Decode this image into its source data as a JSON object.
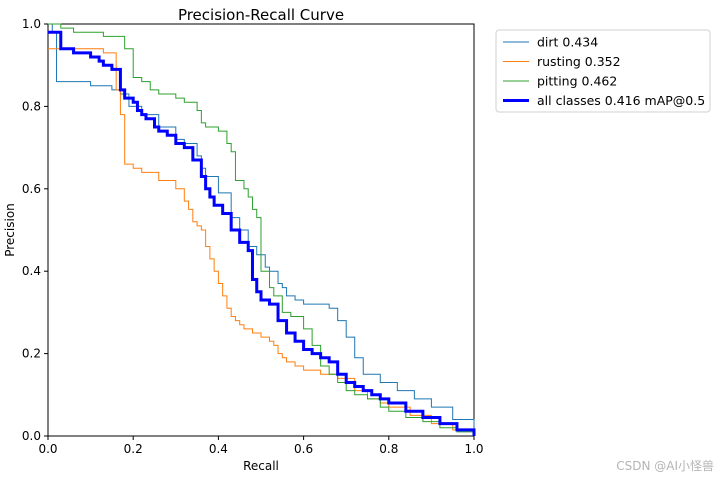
{
  "chart_data": {
    "type": "line",
    "title": "Precision-Recall Curve",
    "xlabel": "Recall",
    "ylabel": "Precision",
    "xlim": [
      0,
      1
    ],
    "ylim": [
      0,
      1
    ],
    "xticks": [
      "0.0",
      "0.2",
      "0.4",
      "0.6",
      "0.8",
      "1.0"
    ],
    "yticks": [
      "0.0",
      "0.2",
      "0.4",
      "0.6",
      "0.8",
      "1.0"
    ],
    "grid": false,
    "legend_position": "outside-top-right",
    "series": [
      {
        "name": "dirt 0.434",
        "color": "#1f77b4",
        "points": [
          [
            0,
            1.0
          ],
          [
            0.01,
            0.98
          ],
          [
            0.02,
            0.86
          ],
          [
            0.04,
            0.86
          ],
          [
            0.1,
            0.85
          ],
          [
            0.15,
            0.84
          ],
          [
            0.17,
            0.83
          ],
          [
            0.19,
            0.8
          ],
          [
            0.22,
            0.78
          ],
          [
            0.26,
            0.75
          ],
          [
            0.3,
            0.72
          ],
          [
            0.32,
            0.71
          ],
          [
            0.35,
            0.68
          ],
          [
            0.36,
            0.65
          ],
          [
            0.37,
            0.63
          ],
          [
            0.4,
            0.59
          ],
          [
            0.43,
            0.53
          ],
          [
            0.45,
            0.5
          ],
          [
            0.47,
            0.46
          ],
          [
            0.49,
            0.44
          ],
          [
            0.51,
            0.41
          ],
          [
            0.52,
            0.4
          ],
          [
            0.54,
            0.37
          ],
          [
            0.55,
            0.36
          ],
          [
            0.56,
            0.34
          ],
          [
            0.58,
            0.33
          ],
          [
            0.6,
            0.32
          ],
          [
            0.62,
            0.32
          ],
          [
            0.66,
            0.31
          ],
          [
            0.68,
            0.28
          ],
          [
            0.7,
            0.24
          ],
          [
            0.72,
            0.19
          ],
          [
            0.74,
            0.15
          ],
          [
            0.78,
            0.13
          ],
          [
            0.82,
            0.11
          ],
          [
            0.86,
            0.09
          ],
          [
            0.9,
            0.07
          ],
          [
            0.95,
            0.04
          ],
          [
            1.0,
            0.0
          ]
        ]
      },
      {
        "name": "rusting 0.352",
        "color": "#ff7f0e",
        "points": [
          [
            0,
            0.94
          ],
          [
            0.06,
            0.94
          ],
          [
            0.13,
            0.93
          ],
          [
            0.16,
            0.84
          ],
          [
            0.17,
            0.78
          ],
          [
            0.18,
            0.66
          ],
          [
            0.2,
            0.65
          ],
          [
            0.22,
            0.64
          ],
          [
            0.26,
            0.62
          ],
          [
            0.3,
            0.6
          ],
          [
            0.32,
            0.57
          ],
          [
            0.33,
            0.55
          ],
          [
            0.34,
            0.52
          ],
          [
            0.35,
            0.51
          ],
          [
            0.36,
            0.5
          ],
          [
            0.37,
            0.46
          ],
          [
            0.38,
            0.43
          ],
          [
            0.39,
            0.4
          ],
          [
            0.4,
            0.37
          ],
          [
            0.41,
            0.34
          ],
          [
            0.42,
            0.31
          ],
          [
            0.43,
            0.29
          ],
          [
            0.44,
            0.28
          ],
          [
            0.45,
            0.27
          ],
          [
            0.46,
            0.26
          ],
          [
            0.48,
            0.25
          ],
          [
            0.5,
            0.24
          ],
          [
            0.52,
            0.23
          ],
          [
            0.53,
            0.22
          ],
          [
            0.54,
            0.2
          ],
          [
            0.55,
            0.19
          ],
          [
            0.56,
            0.18
          ],
          [
            0.58,
            0.17
          ],
          [
            0.6,
            0.16
          ],
          [
            0.64,
            0.15
          ],
          [
            0.68,
            0.14
          ],
          [
            0.72,
            0.11
          ],
          [
            0.75,
            0.09
          ],
          [
            0.78,
            0.08
          ],
          [
            0.8,
            0.07
          ],
          [
            0.85,
            0.05
          ],
          [
            0.9,
            0.03
          ],
          [
            0.95,
            0.015
          ],
          [
            1.0,
            0.0
          ]
        ]
      },
      {
        "name": "pitting 0.462",
        "color": "#2ca02c",
        "points": [
          [
            0,
            1.0
          ],
          [
            0.02,
            1.0
          ],
          [
            0.03,
            0.99
          ],
          [
            0.06,
            0.98
          ],
          [
            0.09,
            0.98
          ],
          [
            0.13,
            0.97
          ],
          [
            0.18,
            0.94
          ],
          [
            0.2,
            0.87
          ],
          [
            0.22,
            0.86
          ],
          [
            0.24,
            0.84
          ],
          [
            0.26,
            0.83
          ],
          [
            0.3,
            0.82
          ],
          [
            0.32,
            0.81
          ],
          [
            0.35,
            0.79
          ],
          [
            0.36,
            0.76
          ],
          [
            0.37,
            0.75
          ],
          [
            0.4,
            0.74
          ],
          [
            0.42,
            0.71
          ],
          [
            0.43,
            0.69
          ],
          [
            0.44,
            0.62
          ],
          [
            0.46,
            0.6
          ],
          [
            0.47,
            0.58
          ],
          [
            0.48,
            0.55
          ],
          [
            0.49,
            0.53
          ],
          [
            0.5,
            0.4
          ],
          [
            0.52,
            0.36
          ],
          [
            0.53,
            0.34
          ],
          [
            0.55,
            0.3
          ],
          [
            0.57,
            0.29
          ],
          [
            0.6,
            0.26
          ],
          [
            0.62,
            0.22
          ],
          [
            0.64,
            0.17
          ],
          [
            0.66,
            0.15
          ],
          [
            0.68,
            0.13
          ],
          [
            0.7,
            0.11
          ],
          [
            0.72,
            0.1
          ],
          [
            0.75,
            0.09
          ],
          [
            0.78,
            0.07
          ],
          [
            0.8,
            0.06
          ],
          [
            0.84,
            0.045
          ],
          [
            0.88,
            0.035
          ],
          [
            0.92,
            0.02
          ],
          [
            0.96,
            0.01
          ],
          [
            1.0,
            0.0
          ]
        ]
      },
      {
        "name": "all classes 0.416 mAP@0.5",
        "color": "#0000ff",
        "thick": true,
        "points": [
          [
            0,
            0.98
          ],
          [
            0.02,
            0.98
          ],
          [
            0.03,
            0.94
          ],
          [
            0.06,
            0.93
          ],
          [
            0.1,
            0.92
          ],
          [
            0.12,
            0.91
          ],
          [
            0.13,
            0.9
          ],
          [
            0.15,
            0.89
          ],
          [
            0.17,
            0.84
          ],
          [
            0.18,
            0.82
          ],
          [
            0.2,
            0.81
          ],
          [
            0.21,
            0.79
          ],
          [
            0.22,
            0.78
          ],
          [
            0.23,
            0.77
          ],
          [
            0.25,
            0.75
          ],
          [
            0.26,
            0.74
          ],
          [
            0.28,
            0.73
          ],
          [
            0.3,
            0.71
          ],
          [
            0.32,
            0.7
          ],
          [
            0.34,
            0.67
          ],
          [
            0.36,
            0.63
          ],
          [
            0.37,
            0.6
          ],
          [
            0.38,
            0.58
          ],
          [
            0.39,
            0.56
          ],
          [
            0.41,
            0.54
          ],
          [
            0.43,
            0.5
          ],
          [
            0.45,
            0.47
          ],
          [
            0.47,
            0.45
          ],
          [
            0.48,
            0.38
          ],
          [
            0.49,
            0.35
          ],
          [
            0.5,
            0.33
          ],
          [
            0.52,
            0.32
          ],
          [
            0.54,
            0.28
          ],
          [
            0.56,
            0.25
          ],
          [
            0.58,
            0.23
          ],
          [
            0.6,
            0.21
          ],
          [
            0.62,
            0.2
          ],
          [
            0.64,
            0.19
          ],
          [
            0.66,
            0.18
          ],
          [
            0.68,
            0.15
          ],
          [
            0.7,
            0.13
          ],
          [
            0.72,
            0.12
          ],
          [
            0.74,
            0.11
          ],
          [
            0.76,
            0.1
          ],
          [
            0.78,
            0.09
          ],
          [
            0.8,
            0.08
          ],
          [
            0.84,
            0.06
          ],
          [
            0.88,
            0.045
          ],
          [
            0.92,
            0.03
          ],
          [
            0.96,
            0.015
          ],
          [
            1.0,
            0.0
          ]
        ]
      }
    ]
  },
  "watermark": "CSDN @AI小怪兽"
}
